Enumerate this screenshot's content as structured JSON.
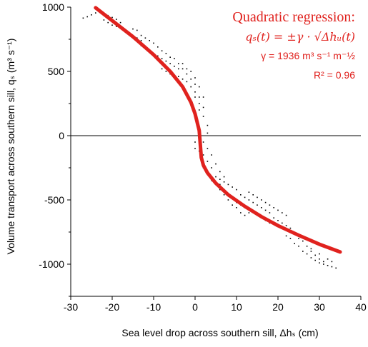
{
  "chart_data": {
    "type": "scatter",
    "title": "",
    "xlabel": "Sea level drop across southern sill, Δhₛ (cm)",
    "ylabel": "Volume transport across southern sill, qₛ (m³ s⁻¹)",
    "xlim": [
      -30,
      40
    ],
    "ylim": [
      -1250,
      1000
    ],
    "xticks": [
      "-30",
      "-20",
      "-10",
      "0",
      "10",
      "20",
      "30",
      "40"
    ],
    "yticks": [
      "1000",
      "500",
      "0",
      "-500",
      "-1000"
    ],
    "xtick_values": [
      -30,
      -20,
      -10,
      0,
      10,
      20,
      30,
      40
    ],
    "ytick_values": [
      1000,
      500,
      0,
      -500,
      -1000
    ],
    "grid": false,
    "zero_line": true,
    "annotation": {
      "title": "Quadratic regression:",
      "formula": "qₛ(t) = ±γ · √Δhᵤ(t)",
      "gamma": "γ = 1936 m³ s⁻¹ m⁻½",
      "r2": "R² = 0.96",
      "color": "#e0221e"
    },
    "series": [
      {
        "kind": "points",
        "color": "#000000",
        "points": [
          [
            -27,
            915
          ],
          [
            -26,
            925
          ],
          [
            -25,
            940
          ],
          [
            -24,
            955
          ],
          [
            -23,
            960
          ],
          [
            -22,
            945
          ],
          [
            -21,
            935
          ],
          [
            -20,
            920
          ],
          [
            -19,
            905
          ],
          [
            -18,
            880
          ],
          [
            -22,
            900
          ],
          [
            -21,
            880
          ],
          [
            -20,
            860
          ],
          [
            -19,
            850
          ],
          [
            -18,
            840
          ],
          [
            -17,
            820
          ],
          [
            -16,
            800
          ],
          [
            -15,
            770
          ],
          [
            -14,
            760
          ],
          [
            -13,
            740
          ],
          [
            -15,
            830
          ],
          [
            -14,
            820
          ],
          [
            -13,
            780
          ],
          [
            -12,
            760
          ],
          [
            -11,
            740
          ],
          [
            -10,
            720
          ],
          [
            -9,
            690
          ],
          [
            -8,
            660
          ],
          [
            -7,
            640
          ],
          [
            -6,
            610
          ],
          [
            -13,
            700
          ],
          [
            -12,
            690
          ],
          [
            -11,
            660
          ],
          [
            -10,
            640
          ],
          [
            -9,
            620
          ],
          [
            -8,
            600
          ],
          [
            -7,
            580
          ],
          [
            -6,
            560
          ],
          [
            -5,
            540
          ],
          [
            -4,
            520
          ],
          [
            -5,
            600
          ],
          [
            -4,
            560
          ],
          [
            -3,
            520
          ],
          [
            -2,
            480
          ],
          [
            -1,
            440
          ],
          [
            0,
            400
          ],
          [
            0,
            340
          ],
          [
            1,
            300
          ],
          [
            1,
            250
          ],
          [
            2,
            220
          ],
          [
            -3,
            560
          ],
          [
            -2,
            520
          ],
          [
            -1,
            500
          ],
          [
            0,
            450
          ],
          [
            1,
            380
          ],
          [
            2,
            300
          ],
          [
            2,
            150
          ],
          [
            3,
            80
          ],
          [
            3,
            20
          ],
          [
            2,
            -50
          ],
          [
            -8,
            520
          ],
          [
            -7,
            500
          ],
          [
            -6,
            480
          ],
          [
            -5,
            470
          ],
          [
            -4,
            460
          ],
          [
            -3,
            440
          ],
          [
            -2,
            420
          ],
          [
            -1,
            380
          ],
          [
            0,
            300
          ],
          [
            1,
            200
          ],
          [
            0,
            -50
          ],
          [
            0,
            -100
          ],
          [
            1,
            -60
          ],
          [
            1,
            -120
          ],
          [
            2,
            -150
          ],
          [
            2,
            -250
          ],
          [
            3,
            -300
          ],
          [
            3,
            -200
          ],
          [
            4,
            -250
          ],
          [
            4,
            -350
          ],
          [
            3,
            -100
          ],
          [
            4,
            -150
          ],
          [
            5,
            -220
          ],
          [
            5,
            -320
          ],
          [
            6,
            -280
          ],
          [
            6,
            -380
          ],
          [
            7,
            -320
          ],
          [
            7,
            -420
          ],
          [
            8,
            -380
          ],
          [
            8,
            -460
          ],
          [
            9,
            -400
          ],
          [
            9,
            -480
          ],
          [
            10,
            -420
          ],
          [
            10,
            -520
          ],
          [
            11,
            -460
          ],
          [
            11,
            -540
          ],
          [
            12,
            -480
          ],
          [
            12,
            -560
          ],
          [
            13,
            -500
          ],
          [
            13,
            -600
          ],
          [
            14,
            -520
          ],
          [
            14,
            -580
          ],
          [
            15,
            -540
          ],
          [
            15,
            -620
          ],
          [
            16,
            -560
          ],
          [
            16,
            -640
          ],
          [
            17,
            -580
          ],
          [
            17,
            -660
          ],
          [
            18,
            -600
          ],
          [
            18,
            -680
          ],
          [
            13,
            -440
          ],
          [
            14,
            -460
          ],
          [
            15,
            -480
          ],
          [
            16,
            -500
          ],
          [
            17,
            -520
          ],
          [
            18,
            -540
          ],
          [
            19,
            -560
          ],
          [
            20,
            -580
          ],
          [
            21,
            -600
          ],
          [
            22,
            -620
          ],
          [
            19,
            -640
          ],
          [
            20,
            -660
          ],
          [
            21,
            -680
          ],
          [
            22,
            -700
          ],
          [
            23,
            -720
          ],
          [
            24,
            -760
          ],
          [
            25,
            -800
          ],
          [
            26,
            -820
          ],
          [
            27,
            -860
          ],
          [
            28,
            -880
          ],
          [
            22,
            -780
          ],
          [
            23,
            -800
          ],
          [
            24,
            -840
          ],
          [
            25,
            -860
          ],
          [
            26,
            -900
          ],
          [
            27,
            -920
          ],
          [
            28,
            -950
          ],
          [
            29,
            -970
          ],
          [
            30,
            -990
          ],
          [
            31,
            -1000
          ],
          [
            29,
            -930
          ],
          [
            30,
            -960
          ],
          [
            31,
            -980
          ],
          [
            32,
            -1010
          ],
          [
            33,
            -1020
          ],
          [
            34,
            -1030
          ],
          [
            30,
            -920
          ],
          [
            32,
            -960
          ],
          [
            33,
            -980
          ],
          [
            28,
            -900
          ],
          [
            5,
            -380
          ],
          [
            6,
            -420
          ],
          [
            7,
            -460
          ],
          [
            8,
            -500
          ],
          [
            9,
            -540
          ],
          [
            10,
            -560
          ],
          [
            11,
            -600
          ],
          [
            12,
            -620
          ],
          [
            6,
            -340
          ],
          [
            7,
            -360
          ]
        ]
      },
      {
        "kind": "line",
        "name": "",
        "color": "#e0221e",
        "x": [
          -24,
          -20,
          -15,
          -10,
          -6,
          -3,
          -1,
          0,
          1,
          1.5,
          2,
          3,
          5,
          8,
          12,
          16,
          20,
          25,
          30,
          35
        ],
        "y": [
          995,
          895,
          770,
          630,
          500,
          380,
          260,
          170,
          40,
          -170,
          -230,
          -290,
          -370,
          -460,
          -550,
          -630,
          -700,
          -775,
          -845,
          -905
        ]
      }
    ]
  }
}
